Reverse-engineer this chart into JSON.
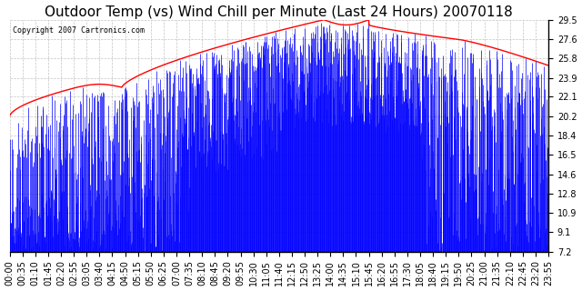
{
  "title": "Outdoor Temp (vs) Wind Chill per Minute (Last 24 Hours) 20070118",
  "copyright_text": "Copyright 2007 Cartronics.com",
  "yticks": [
    7.2,
    9.1,
    10.9,
    12.8,
    14.6,
    16.5,
    18.4,
    20.2,
    22.1,
    23.9,
    25.8,
    27.6,
    29.5
  ],
  "ylim": [
    7.2,
    29.5
  ],
  "xtick_labels": [
    "00:00",
    "00:35",
    "01:10",
    "01:45",
    "02:20",
    "02:55",
    "03:05",
    "03:40",
    "04:15",
    "04:50",
    "05:15",
    "05:50",
    "06:25",
    "07:00",
    "07:35",
    "08:10",
    "08:45",
    "09:20",
    "09:55",
    "10:30",
    "11:05",
    "11:40",
    "12:15",
    "12:50",
    "13:25",
    "14:00",
    "14:35",
    "15:10",
    "15:45",
    "16:20",
    "16:55",
    "17:30",
    "18:05",
    "18:40",
    "19:15",
    "19:50",
    "20:25",
    "21:00",
    "21:35",
    "22:10",
    "22:45",
    "23:20",
    "23:55"
  ],
  "background_color": "#ffffff",
  "plot_bg_color": "#ffffff",
  "grid_color": "#aaaaaa",
  "blue_color": "#0000ff",
  "red_color": "#ff0000",
  "title_fontsize": 11,
  "tick_fontsize": 7
}
